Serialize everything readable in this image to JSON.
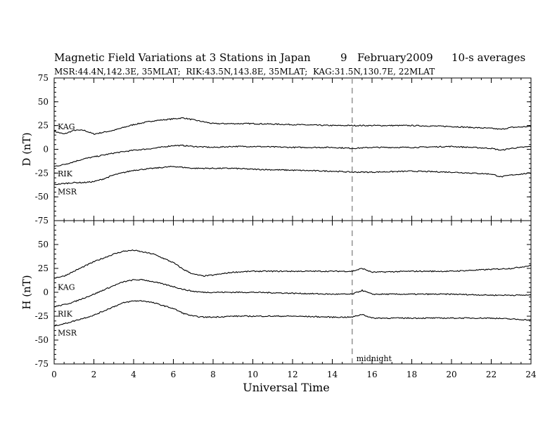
{
  "title": {
    "main": "Magnetic Field Variations at 3 Stations in Japan",
    "day": "9",
    "date": "February2009",
    "averaging": "10-s averages"
  },
  "subtitle": "MSR:44.4N,142.3E, 35MLAT;  RIK:43.5N,143.8E, 35MLAT;  KAG:31.5N,130.7E, 22MLAT",
  "chart_data": [
    {
      "type": "line",
      "panel": "top",
      "ylabel": "D (nT)",
      "ylim": [
        -75,
        75
      ],
      "yticks": [
        75,
        50,
        25,
        0,
        -25,
        -50,
        -75
      ],
      "xlim": [
        0,
        24
      ],
      "annotation": {
        "x": 15,
        "style": "dashed-vertical"
      },
      "series": [
        {
          "name": "KAG",
          "x": [
            0,
            0.5,
            1,
            1.5,
            2,
            2.5,
            3,
            4,
            5,
            6,
            6.5,
            7,
            8,
            9,
            10,
            12,
            14,
            15,
            16,
            18,
            20,
            22,
            22.5,
            23,
            24
          ],
          "values": [
            19,
            16,
            20,
            20,
            16,
            18,
            20,
            26,
            30,
            32,
            33,
            31,
            27,
            27,
            27,
            26,
            25,
            25,
            25,
            25,
            24,
            22,
            21,
            23,
            24
          ]
        },
        {
          "name": "RIK",
          "x": [
            0,
            0.5,
            1,
            1.5,
            2,
            2.5,
            3,
            4,
            5,
            6,
            6.5,
            7,
            8,
            9,
            10,
            12,
            14,
            15,
            16,
            18,
            20,
            22,
            22.5,
            23,
            24
          ],
          "values": [
            -18,
            -16,
            -13,
            -10,
            -8,
            -6,
            -4,
            -1,
            1,
            4,
            4,
            3,
            2,
            3,
            3,
            2,
            2,
            1,
            2,
            2,
            3,
            1,
            -1,
            1,
            3
          ]
        },
        {
          "name": "MSR",
          "x": [
            0,
            0.5,
            1,
            1.5,
            2,
            2.5,
            3,
            4,
            5,
            6,
            6.5,
            7,
            8,
            9,
            10,
            12,
            14,
            15,
            16,
            18,
            20,
            22,
            22.5,
            23,
            24
          ],
          "values": [
            -37,
            -36,
            -35,
            -35,
            -34,
            -31,
            -27,
            -22,
            -20,
            -18,
            -19,
            -20,
            -20,
            -20,
            -21,
            -22,
            -23,
            -24,
            -24,
            -23,
            -24,
            -26,
            -29,
            -27,
            -25
          ]
        }
      ]
    },
    {
      "type": "line",
      "panel": "bottom",
      "ylabel": "H (nT)",
      "ylim": [
        -75,
        75
      ],
      "yticks": [
        50,
        25,
        0,
        -25,
        -50,
        -75
      ],
      "xlabel": "Universal Time",
      "xlim": [
        0,
        24
      ],
      "xticks": [
        0,
        2,
        4,
        6,
        8,
        10,
        12,
        14,
        16,
        18,
        20,
        22,
        24
      ],
      "annotation": {
        "x": 15,
        "style": "dashed-vertical",
        "label": "midnight"
      },
      "series": [
        {
          "name": "KAG",
          "x": [
            0,
            0.5,
            1,
            2,
            3,
            3.5,
            4,
            4.5,
            5,
            6,
            6.5,
            7,
            7.5,
            8,
            9,
            10,
            12,
            14,
            15,
            15.5,
            16,
            18,
            20,
            22,
            23,
            24
          ],
          "values": [
            15,
            17,
            22,
            32,
            40,
            43,
            44,
            42,
            40,
            31,
            24,
            19,
            17,
            18,
            21,
            22,
            22,
            22,
            22,
            25,
            21,
            22,
            22,
            24,
            25,
            28
          ]
        },
        {
          "name": "RIK",
          "x": [
            0,
            0.5,
            1,
            2,
            3,
            3.5,
            4,
            4.5,
            5,
            6,
            6.5,
            7,
            7.5,
            8,
            9,
            10,
            12,
            14,
            15,
            15.5,
            16,
            18,
            20,
            22,
            23,
            24
          ],
          "values": [
            -15,
            -13,
            -10,
            -2,
            7,
            11,
            13,
            13,
            11,
            6,
            3,
            1,
            0,
            0,
            0,
            0,
            -1,
            -2,
            -2,
            2,
            -2,
            -2,
            -2,
            -3,
            -3,
            -3
          ]
        },
        {
          "name": "MSR",
          "x": [
            0,
            0.5,
            1,
            2,
            3,
            3.5,
            4,
            4.5,
            5,
            6,
            6.5,
            7,
            7.5,
            8,
            9,
            10,
            12,
            14,
            15,
            15.5,
            16,
            18,
            20,
            22,
            23,
            24
          ],
          "values": [
            -35,
            -33,
            -30,
            -24,
            -15,
            -11,
            -9,
            -9,
            -11,
            -17,
            -22,
            -25,
            -26,
            -26,
            -25,
            -25,
            -25,
            -26,
            -26,
            -23,
            -27,
            -27,
            -27,
            -27,
            -28,
            -29
          ]
        }
      ]
    }
  ]
}
